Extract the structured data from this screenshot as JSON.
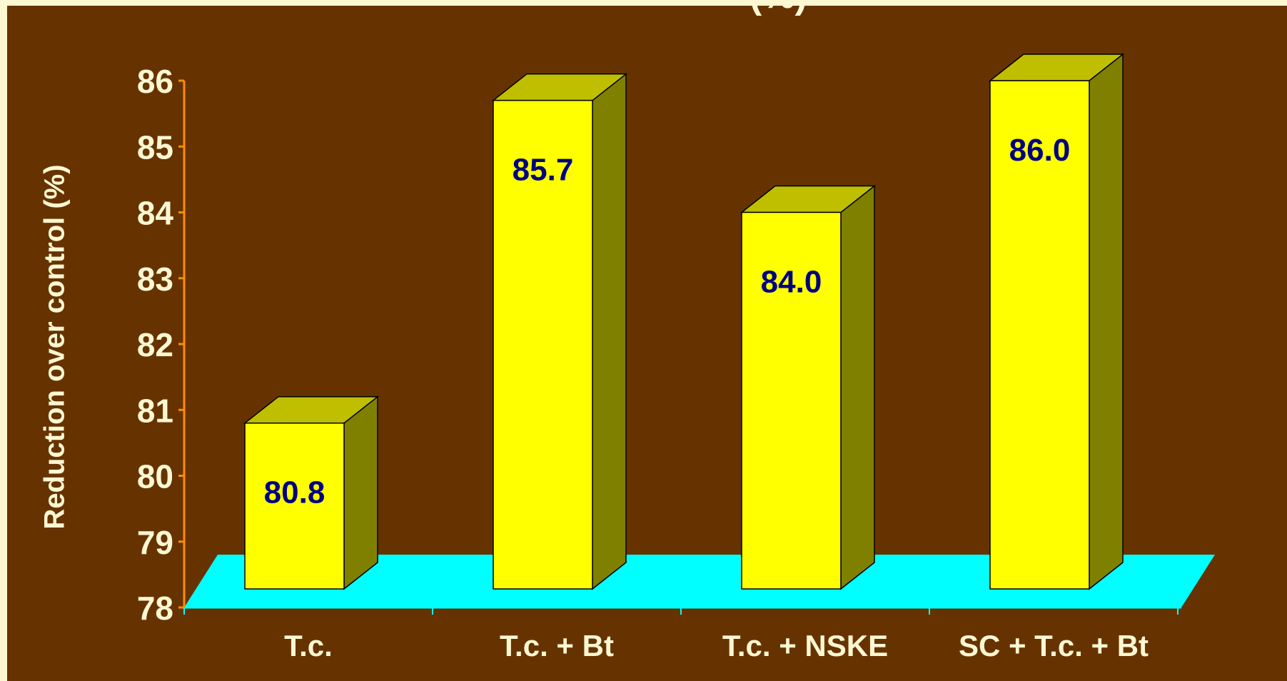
{
  "chart_data": {
    "type": "bar",
    "title_fragment": "(%)",
    "categories": [
      "T.c.",
      "T.c. + Bt",
      "T.c. + NSKE",
      "SC + T.c. + Bt"
    ],
    "values": [
      80.8,
      85.7,
      84.0,
      86.0
    ],
    "data_labels": [
      "80.8",
      "85.7",
      "84.0",
      "86.0"
    ],
    "ylabel": "Reduction over control (%)",
    "xlabel": "",
    "ylim": [
      78,
      86
    ],
    "yticks": [
      "78",
      "79",
      "80",
      "81",
      "82",
      "83",
      "84",
      "85",
      "86"
    ],
    "grid": false,
    "legend": "none",
    "style": "3d-columns"
  },
  "colors": {
    "background": "#663300",
    "page_border": "#fdf7d2",
    "bar_front": "#ffff00",
    "bar_top": "#bfbf00",
    "bar_side": "#808000",
    "floor": "#00ffff",
    "axis": "#ff8c00",
    "tick_text": "#fdf7d2",
    "value_text": "#000080"
  }
}
